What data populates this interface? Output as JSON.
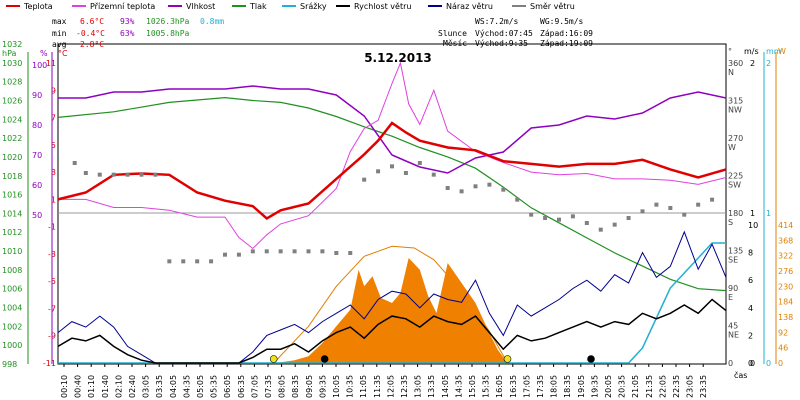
{
  "chart_data": {
    "type": "line",
    "title": "5.12.2013",
    "x_unit_label": "čas",
    "x_ticks": [
      "00:10",
      "00:40",
      "01:10",
      "01:40",
      "02:10",
      "02:40",
      "03:05",
      "03:35",
      "04:05",
      "04:35",
      "05:05",
      "05:35",
      "06:05",
      "06:35",
      "07:05",
      "07:35",
      "08:05",
      "08:35",
      "09:05",
      "09:35",
      "10:05",
      "10:35",
      "11:05",
      "11:35",
      "12:05",
      "12:35",
      "13:05",
      "13:35",
      "14:05",
      "14:35",
      "15:05",
      "15:35",
      "16:05",
      "16:35",
      "17:05",
      "17:35",
      "18:05",
      "18:35",
      "19:05",
      "19:35",
      "20:05",
      "20:35",
      "21:05",
      "21:35",
      "22:05",
      "22:35",
      "23:05",
      "23:35"
    ],
    "legend": [
      {
        "name": "Teplota",
        "color": "#e00000"
      },
      {
        "name": "Přízemní teplota",
        "color": "#e040e0"
      },
      {
        "name": "Vlhkost",
        "color": "#9000c0"
      },
      {
        "name": "Tlak",
        "color": "#209020"
      },
      {
        "name": "Srážky",
        "color": "#20b0d0"
      },
      {
        "name": "Rychlost větru",
        "color": "#000000"
      },
      {
        "name": "Náraz větru",
        "color": "#000090"
      },
      {
        "name": "Směr větru",
        "color": "#808080"
      }
    ],
    "stats": {
      "max": {
        "label": "max",
        "temp": "6.6°C",
        "hum": "93%",
        "press": "1026.3hPa",
        "rain": "0.8mm"
      },
      "min": {
        "label": "min",
        "temp": "-0.4°C",
        "hum": "63%",
        "press": "1005.8hPa"
      },
      "avg": {
        "label": "avg",
        "temp": "2.8°C"
      }
    },
    "wind_info": {
      "ws": "WS:7.2m/s",
      "wg": "WG:9.5m/s"
    },
    "sun": {
      "label": "Slunce",
      "rise": "Východ:07:45",
      "set": "Západ:16:09"
    },
    "moon": {
      "label": "Měsíc",
      "rise": "Východ:9:35",
      "set": "Západ:19:09"
    },
    "axes": {
      "hpa": {
        "title": "hPa",
        "ticks": [
          "1032",
          "1030",
          "1028",
          "1026",
          "1024",
          "1022",
          "1020",
          "1018",
          "1016",
          "1014",
          "1012",
          "1010",
          "1008",
          "1006",
          "1004",
          "1002",
          "1000",
          "998"
        ],
        "color": "#209020"
      },
      "pct": {
        "title": "%",
        "ticks": [
          "100",
          "90",
          "80",
          "70",
          "60",
          "50"
        ],
        "color": "#9000c0"
      },
      "degc": {
        "title": "°C",
        "ticks": [
          "11",
          "9",
          "7",
          "5",
          "3",
          "1",
          "-1",
          "-3",
          "-5",
          "-7",
          "-9",
          "-11"
        ],
        "color": "#e00000"
      },
      "dir": {
        "title": "°",
        "ticks": [
          "360",
          "315",
          "270",
          "225",
          "180",
          "135",
          "90",
          "45",
          "0"
        ],
        "labels": [
          "N",
          "NW",
          "W",
          "SW",
          "S",
          "SE",
          "E",
          "NE"
        ],
        "color": "#404040"
      },
      "ms": {
        "title": "m/s",
        "ticks": [
          "2",
          "1",
          "0"
        ],
        "color": "#000000"
      },
      "mm": {
        "title": "mm",
        "ticks": [
          "2",
          "1",
          "0"
        ],
        "color": "#20b0d0"
      },
      "wm2": {
        "title": "W",
        "ticks": [
          "414",
          "368",
          "322",
          "276",
          "230",
          "184",
          "138",
          "92",
          "46",
          "0"
        ],
        "color": "#e08000"
      },
      "ms_low": {
        "ticks": [
          "10",
          "8",
          "6",
          "4",
          "2",
          "0"
        ]
      }
    },
    "series": [
      {
        "name": "Teplota",
        "unit": "°C",
        "x_hours": [
          0,
          1,
          2,
          3,
          4,
          5,
          6,
          7,
          7.5,
          8,
          9,
          10,
          11,
          11.5,
          12,
          12.5,
          13,
          14,
          15,
          16,
          17,
          18,
          19,
          20,
          21,
          22,
          23,
          24
        ],
        "values": [
          1.0,
          1.5,
          2.8,
          2.9,
          2.8,
          1.5,
          0.9,
          0.5,
          -0.4,
          0.2,
          0.7,
          2.5,
          4.3,
          5.3,
          6.6,
          5.9,
          5.3,
          4.8,
          4.6,
          3.8,
          3.6,
          3.4,
          3.6,
          3.6,
          3.9,
          3.2,
          2.6,
          3.2
        ]
      },
      {
        "name": "Přízemní teplota",
        "unit": "°C",
        "x_hours": [
          0,
          1,
          2,
          3,
          4,
          5,
          6,
          6.5,
          7,
          7.5,
          8,
          9,
          10,
          10.5,
          11,
          11.5,
          12,
          12.3,
          12.6,
          13,
          13.5,
          14,
          15,
          16,
          17,
          18,
          19,
          20,
          21,
          22,
          23,
          24
        ],
        "values": [
          1.0,
          1.0,
          0.4,
          0.4,
          0.2,
          -0.3,
          -0.3,
          -1.8,
          -2.6,
          -1.6,
          -0.8,
          -0.2,
          1.8,
          4.5,
          6.2,
          6.8,
          9.5,
          11.0,
          8.0,
          6.5,
          9.0,
          6.0,
          4.5,
          3.7,
          3.0,
          2.8,
          2.9,
          2.5,
          2.5,
          2.4,
          2.1,
          2.6
        ]
      },
      {
        "name": "Vlhkost",
        "unit": "%",
        "x_hours": [
          0,
          1,
          2,
          3,
          4,
          5,
          6,
          7,
          8,
          9,
          10,
          11,
          12,
          12.5,
          13,
          14,
          15,
          16,
          17,
          18,
          19,
          20,
          21,
          22,
          23,
          24
        ],
        "values": [
          89,
          89,
          91,
          91,
          92,
          92,
          92,
          93,
          92,
          92,
          90,
          83,
          70,
          68,
          66,
          64,
          69,
          71,
          79,
          80,
          83,
          82,
          84,
          89,
          91,
          89
        ]
      },
      {
        "name": "Tlak",
        "unit": "hPa",
        "x_hours": [
          0,
          2,
          4,
          6,
          7,
          8,
          9,
          10,
          11,
          12,
          13,
          14,
          15,
          16,
          17,
          18,
          19,
          20,
          21,
          22,
          23,
          24
        ],
        "values": [
          1024.2,
          1024.8,
          1025.8,
          1026.3,
          1026.0,
          1025.8,
          1025.2,
          1024.3,
          1023.2,
          1022.2,
          1021.0,
          1020.0,
          1018.8,
          1016.8,
          1014.6,
          1013.0,
          1011.4,
          1009.8,
          1008.4,
          1007.0,
          1006.0,
          1005.8
        ]
      },
      {
        "name": "Srážky",
        "unit": "mm",
        "x_hours": [
          0,
          20.5,
          21,
          21.5,
          22,
          22.5,
          23,
          23.5,
          24
        ],
        "values": [
          0,
          0,
          0.1,
          0.3,
          0.5,
          0.6,
          0.7,
          0.8,
          0.8
        ]
      },
      {
        "name": "Rychlost větru",
        "unit": "m/s",
        "x_hours": [
          0,
          0.5,
          1,
          1.5,
          2,
          2.5,
          3,
          3.5,
          4,
          4.5,
          5,
          5.5,
          6,
          6.5,
          7,
          7.5,
          8,
          8.5,
          9,
          9.5,
          10,
          10.5,
          11,
          11.5,
          12,
          12.5,
          13,
          13.5,
          14,
          14.5,
          15,
          15.5,
          16,
          16.5,
          17,
          17.5,
          18,
          18.5,
          19,
          19.5,
          20,
          20.5,
          21,
          21.5,
          22,
          22.5,
          23,
          23.5,
          24
        ],
        "values": [
          1.2,
          1.8,
          1.6,
          2.0,
          1.2,
          0.6,
          0.2,
          0,
          0,
          0,
          0,
          0,
          0,
          0,
          0.4,
          1.0,
          1.0,
          1.4,
          0.8,
          1.6,
          2.2,
          2.6,
          1.8,
          2.8,
          3.4,
          3.2,
          2.6,
          3.4,
          3.0,
          2.8,
          3.4,
          2.2,
          1.0,
          2.0,
          1.6,
          1.8,
          2.2,
          2.6,
          3.0,
          2.6,
          3.0,
          2.8,
          3.6,
          3.2,
          3.6,
          4.2,
          3.6,
          4.6,
          3.8
        ]
      },
      {
        "name": "Náraz větru",
        "unit": "m/s",
        "x_hours": [
          0,
          0.5,
          1,
          1.5,
          2,
          2.5,
          3,
          3.5,
          4,
          4.5,
          5,
          5.5,
          6,
          6.5,
          7,
          7.5,
          8,
          8.5,
          9,
          9.5,
          10,
          10.5,
          11,
          11.5,
          12,
          12.5,
          13,
          13.5,
          14,
          14.5,
          15,
          15.5,
          16,
          16.5,
          17,
          17.5,
          18,
          18.5,
          19,
          19.5,
          20,
          20.5,
          21,
          21.5,
          22,
          22.5,
          23,
          23.5,
          24
        ],
        "values": [
          2.2,
          3.0,
          2.6,
          3.4,
          2.6,
          1.2,
          0.6,
          0,
          0,
          0,
          0,
          0,
          0,
          0,
          0.8,
          2.0,
          2.4,
          2.8,
          2.2,
          3.0,
          3.6,
          4.2,
          3.2,
          4.6,
          5.2,
          5.0,
          4.0,
          5.0,
          4.6,
          4.4,
          6.0,
          3.6,
          2.0,
          4.2,
          3.4,
          4.0,
          4.6,
          5.4,
          6.0,
          5.2,
          6.4,
          5.8,
          8.0,
          6.2,
          7.0,
          9.5,
          6.8,
          8.6,
          6.2
        ]
      },
      {
        "name": "Směr větru",
        "unit": "°",
        "x_hours": [
          0.6,
          1.0,
          1.5,
          2.0,
          2.5,
          3.0,
          3.5,
          4.0,
          4.5,
          5.0,
          5.5,
          6.0,
          6.5,
          7.0,
          7.5,
          8.0,
          8.5,
          9.0,
          9.5,
          10.0,
          10.5,
          11.0,
          11.5,
          12.0,
          12.5,
          13.0,
          13.5,
          14.0,
          14.5,
          15.0,
          15.5,
          16.0,
          16.5,
          17.0,
          17.5,
          18.0,
          18.5,
          19.0,
          19.5,
          20.0,
          20.5,
          21.0,
          21.5,
          22.0,
          22.5,
          23.0,
          23.5
        ],
        "values": [
          240,
          228,
          226,
          226,
          226,
          226,
          226,
          122,
          122,
          122,
          122,
          130,
          130,
          134,
          134,
          134,
          134,
          134,
          134,
          132,
          132,
          220,
          230,
          236,
          228,
          240,
          226,
          210,
          206,
          212,
          214,
          208,
          196,
          178,
          174,
          172,
          176,
          168,
          160,
          166,
          174,
          182,
          190,
          186,
          178,
          190,
          196
        ]
      },
      {
        "name": "Sluneční záření",
        "unit": "W",
        "x_hours": [
          7.75,
          8,
          8.5,
          9,
          9.5,
          10,
          10.5,
          10.8,
          11,
          11.3,
          11.6,
          12,
          12.3,
          12.6,
          13,
          13.3,
          13.6,
          14,
          14.5,
          15,
          15.5,
          15.8,
          16.15
        ],
        "values": [
          0,
          2,
          8,
          20,
          60,
          110,
          160,
          280,
          230,
          260,
          195,
          180,
          210,
          315,
          280,
          200,
          150,
          300,
          240,
          180,
          90,
          40,
          0
        ]
      },
      {
        "name": "Teoretické záření",
        "unit": "W",
        "x_hours": [
          7.75,
          9,
          10,
          11,
          12,
          12.8,
          13.5,
          14.5,
          15.5,
          16.15
        ],
        "values": [
          0,
          110,
          230,
          320,
          350,
          345,
          310,
          215,
          95,
          0
        ]
      }
    ],
    "markers": [
      {
        "type": "sunrise",
        "x_hours": 7.75,
        "color": "#f0e020"
      },
      {
        "type": "moonrise",
        "x_hours": 9.58,
        "color": "#000000"
      },
      {
        "type": "sunset",
        "x_hours": 16.15,
        "color": "#f0e020"
      },
      {
        "type": "moonset",
        "x_hours": 19.15,
        "color": "#000000"
      }
    ]
  }
}
